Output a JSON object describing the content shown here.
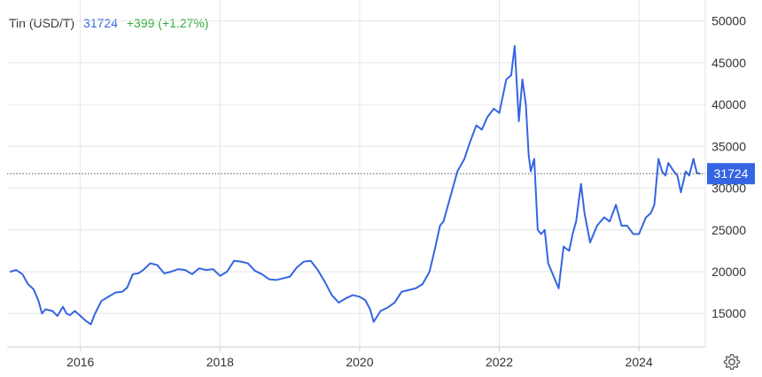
{
  "legend": {
    "name": "Tin (USD/T)",
    "last": "31724",
    "change": "+399 (+1.27%)"
  },
  "colors": {
    "series": "#3565e2",
    "change_positive": "#2eab39",
    "badge": "#3565e2",
    "grid": "#e6e6e6"
  },
  "settings": {
    "icon": "gear-icon"
  },
  "chart_data": {
    "type": "line",
    "title": "",
    "xlabel": "",
    "ylabel": "",
    "xlim": [
      2014.95,
      2024.95
    ],
    "ylim": [
      11000,
      52500
    ],
    "x_ticks": [
      {
        "value": 2016,
        "label": "2016"
      },
      {
        "value": 2018,
        "label": "2018"
      },
      {
        "value": 2020,
        "label": "2020"
      },
      {
        "value": 2022,
        "label": "2022"
      },
      {
        "value": 2024,
        "label": "2024"
      }
    ],
    "y_ticks": [
      {
        "value": 15000,
        "label": "15000"
      },
      {
        "value": 20000,
        "label": "20000"
      },
      {
        "value": 25000,
        "label": "25000"
      },
      {
        "value": 30000,
        "label": "30000"
      },
      {
        "value": 35000,
        "label": "35000"
      },
      {
        "value": 40000,
        "label": "40000"
      },
      {
        "value": 45000,
        "label": "45000"
      },
      {
        "value": 50000,
        "label": "50000"
      }
    ],
    "grid": true,
    "legend_position": "top-left",
    "last_value": 31724,
    "last_value_label": "31724",
    "series": [
      {
        "name": "Tin (USD/T)",
        "color": "#3565e2",
        "x": [
          2015.0,
          2015.08,
          2015.17,
          2015.25,
          2015.33,
          2015.4,
          2015.45,
          2015.5,
          2015.6,
          2015.67,
          2015.75,
          2015.8,
          2015.85,
          2015.92,
          2016.0,
          2016.08,
          2016.15,
          2016.2,
          2016.3,
          2016.4,
          2016.5,
          2016.6,
          2016.67,
          2016.75,
          2016.83,
          2016.9,
          2017.0,
          2017.1,
          2017.2,
          2017.3,
          2017.4,
          2017.5,
          2017.6,
          2017.7,
          2017.8,
          2017.9,
          2018.0,
          2018.1,
          2018.2,
          2018.3,
          2018.4,
          2018.5,
          2018.6,
          2018.7,
          2018.8,
          2018.9,
          2019.0,
          2019.1,
          2019.2,
          2019.3,
          2019.4,
          2019.5,
          2019.6,
          2019.7,
          2019.8,
          2019.9,
          2020.0,
          2020.08,
          2020.15,
          2020.2,
          2020.3,
          2020.4,
          2020.5,
          2020.6,
          2020.7,
          2020.8,
          2020.9,
          2021.0,
          2021.08,
          2021.15,
          2021.2,
          2021.3,
          2021.4,
          2021.5,
          2021.58,
          2021.67,
          2021.75,
          2021.83,
          2021.92,
          2022.0,
          2022.05,
          2022.1,
          2022.17,
          2022.22,
          2022.28,
          2022.33,
          2022.38,
          2022.42,
          2022.45,
          2022.5,
          2022.55,
          2022.6,
          2022.65,
          2022.7,
          2022.75,
          2022.8,
          2022.85,
          2022.92,
          2023.0,
          2023.05,
          2023.1,
          2023.17,
          2023.22,
          2023.3,
          2023.4,
          2023.5,
          2023.58,
          2023.67,
          2023.75,
          2023.83,
          2023.92,
          2024.0,
          2024.05,
          2024.1,
          2024.17,
          2024.22,
          2024.28,
          2024.33,
          2024.38,
          2024.42,
          2024.5,
          2024.55,
          2024.6,
          2024.67,
          2024.72,
          2024.78,
          2024.83,
          2024.87
        ],
        "values": [
          20000,
          20200,
          19700,
          18500,
          17900,
          16500,
          15000,
          15500,
          15300,
          14700,
          15800,
          15000,
          14800,
          15300,
          14700,
          14100,
          13700,
          14800,
          16500,
          17000,
          17500,
          17600,
          18100,
          19700,
          19800,
          20200,
          21000,
          20800,
          19800,
          20000,
          20300,
          20200,
          19700,
          20400,
          20200,
          20300,
          19500,
          20000,
          21300,
          21200,
          21000,
          20100,
          19700,
          19100,
          19000,
          19200,
          19400,
          20500,
          21200,
          21300,
          20200,
          18800,
          17200,
          16300,
          16800,
          17200,
          17000,
          16600,
          15500,
          14000,
          15300,
          15700,
          16300,
          17600,
          17800,
          18000,
          18500,
          20000,
          22800,
          25500,
          26000,
          29000,
          32000,
          33500,
          35500,
          37500,
          37000,
          38500,
          39500,
          39000,
          41000,
          43000,
          43500,
          47000,
          38000,
          43000,
          40000,
          34000,
          32000,
          33500,
          25000,
          24500,
          25000,
          21000,
          20000,
          19000,
          18000,
          23000,
          22500,
          24500,
          26000,
          30500,
          27000,
          23500,
          25500,
          26500,
          26000,
          28000,
          25500,
          25500,
          24500,
          24500,
          25500,
          26500,
          27000,
          28000,
          33500,
          32000,
          31500,
          33000,
          32000,
          31500,
          29500,
          32000,
          31500,
          33500,
          31800,
          31724
        ]
      }
    ]
  }
}
